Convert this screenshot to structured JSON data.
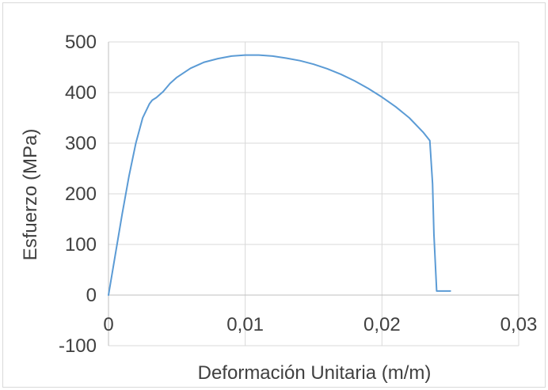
{
  "chart_data": {
    "type": "line",
    "title": "",
    "xlabel": "Deformación Unitaria (m/m)",
    "ylabel": "Esfuerzo (MPa)",
    "xlim": [
      0,
      0.03
    ],
    "ylim": [
      -100,
      500
    ],
    "xticks": [
      0,
      0.01,
      0.02,
      0.03
    ],
    "xtick_labels": [
      "0",
      "0,01",
      "0,02",
      "0,03"
    ],
    "yticks": [
      -100,
      0,
      100,
      200,
      300,
      400,
      500
    ],
    "ytick_labels": [
      "-100",
      "0",
      "100",
      "200",
      "300",
      "400",
      "500"
    ],
    "grid": true,
    "legend": "none",
    "series": [
      {
        "color": "#5b9bd5",
        "x": [
          0,
          0.0005,
          0.001,
          0.0015,
          0.002,
          0.0025,
          0.003,
          0.0032,
          0.0035,
          0.004,
          0.0045,
          0.005,
          0.006,
          0.007,
          0.008,
          0.009,
          0.01,
          0.011,
          0.012,
          0.013,
          0.014,
          0.015,
          0.016,
          0.017,
          0.018,
          0.019,
          0.02,
          0.021,
          0.022,
          0.023,
          0.0235,
          0.0237,
          0.0238,
          0.024,
          0.0242,
          0.0245,
          0.025
        ],
        "y": [
          0,
          80,
          160,
          235,
          300,
          350,
          378,
          385,
          390,
          402,
          418,
          430,
          448,
          460,
          467,
          472,
          474,
          474,
          472,
          468,
          463,
          456,
          447,
          436,
          423,
          408,
          391,
          372,
          350,
          322,
          305,
          220,
          120,
          8,
          8,
          8,
          8
        ]
      }
    ]
  }
}
